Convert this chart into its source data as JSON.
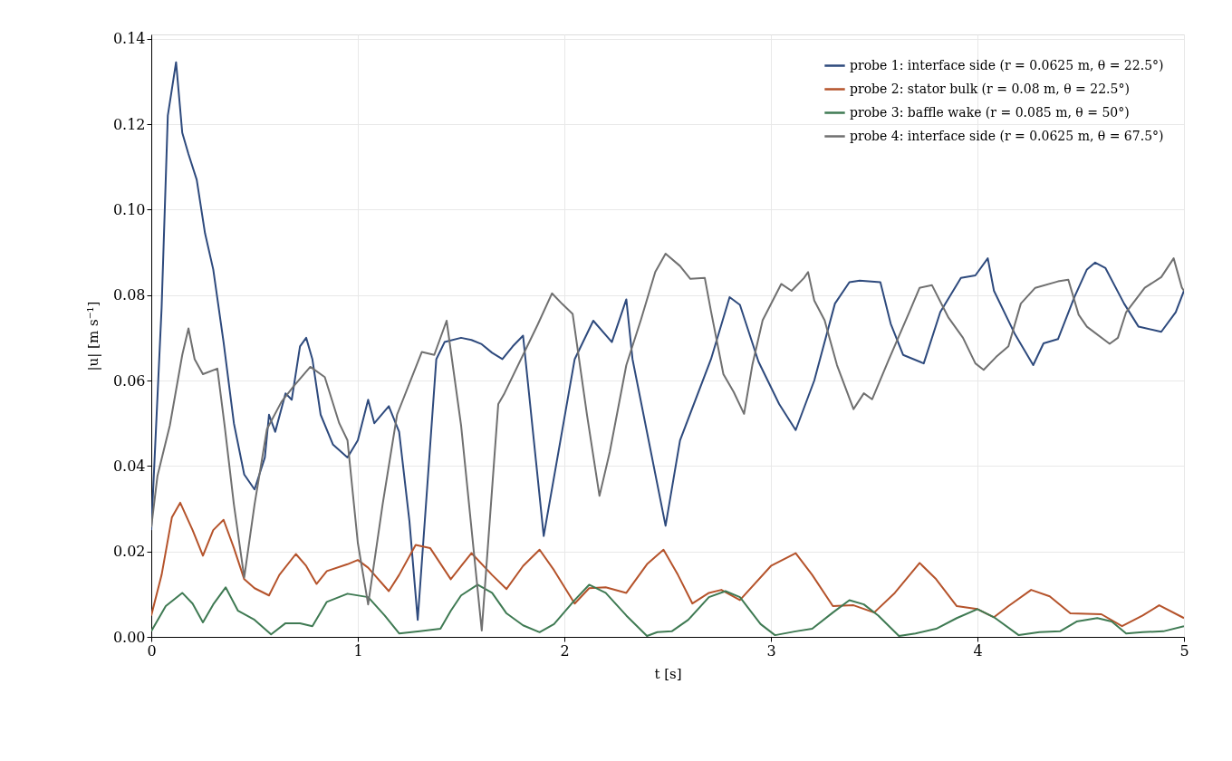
{
  "chart_data": {
    "type": "line",
    "xlabel": "t [s]",
    "ylabel": "|u| [m s⁻¹]",
    "xlim": [
      0,
      5
    ],
    "xticks": [
      0,
      1,
      2,
      3,
      4,
      5
    ],
    "ylim": [
      0,
      0.141
    ],
    "yticks": [
      {
        "value": 0,
        "label": "0.00"
      },
      {
        "value": 0.02,
        "label": "0.02"
      },
      {
        "value": 0.04,
        "label": "0.04"
      },
      {
        "value": 0.06,
        "label": "0.06"
      },
      {
        "value": 0.08,
        "label": "0.08"
      },
      {
        "value": 0.1,
        "label": "0.10"
      },
      {
        "value": 0.12,
        "label": "0.12"
      },
      {
        "value": 0.14,
        "label": "0.14"
      }
    ],
    "grid": true,
    "legend": "top right",
    "marker": "none",
    "line_style": "solid",
    "series": [
      {
        "name": "probe 1: interface side (r = 0.0625 m, θ = 22.5°)",
        "color": "#2e4a7d",
        "x": [
          0,
          0.05,
          0.08,
          0.12,
          0.15,
          0.18,
          0.22,
          0.26,
          0.3,
          0.35,
          0.4,
          0.45,
          0.5,
          0.55,
          0.57,
          0.6,
          0.65,
          0.68,
          0.72,
          0.75,
          0.78,
          0.82,
          0.88,
          0.95,
          1.0,
          1.05,
          1.08,
          1.15,
          1.2,
          1.25,
          1.29,
          1.33,
          1.38,
          1.42,
          1.5,
          1.55,
          1.6,
          1.65,
          1.7,
          1.75,
          1.8,
          1.9,
          2.05,
          2.14,
          2.23,
          2.3,
          2.33,
          2.49,
          2.56,
          2.71,
          2.8,
          2.85,
          2.94,
          3.04,
          3.12,
          3.21,
          3.31,
          3.38,
          3.43,
          3.53,
          3.58,
          3.64,
          3.74,
          3.82,
          3.92,
          3.99,
          4.05,
          4.08,
          4.18,
          4.27,
          4.32,
          4.39,
          4.47,
          4.53,
          4.57,
          4.62,
          4.71,
          4.78,
          4.89,
          4.96,
          5.0
        ],
        "values": [
          0.025,
          0.077,
          0.122,
          0.1345,
          0.118,
          0.113,
          0.107,
          0.0945,
          0.086,
          0.069,
          0.05,
          0.038,
          0.0345,
          0.042,
          0.052,
          0.048,
          0.057,
          0.0555,
          0.068,
          0.07,
          0.065,
          0.052,
          0.045,
          0.042,
          0.046,
          0.0555,
          0.05,
          0.054,
          0.048,
          0.027,
          0.004,
          0.031,
          0.065,
          0.069,
          0.07,
          0.0695,
          0.0685,
          0.0665,
          0.065,
          0.068,
          0.0705,
          0.0236,
          0.065,
          0.074,
          0.069,
          0.079,
          0.065,
          0.026,
          0.046,
          0.065,
          0.0795,
          0.0777,
          0.0644,
          0.0545,
          0.0484,
          0.06,
          0.078,
          0.083,
          0.0834,
          0.083,
          0.0733,
          0.066,
          0.064,
          0.076,
          0.084,
          0.0846,
          0.0886,
          0.081,
          0.071,
          0.0636,
          0.0687,
          0.0697,
          0.0796,
          0.086,
          0.0876,
          0.0863,
          0.078,
          0.0726,
          0.0714,
          0.076,
          0.081
        ]
      },
      {
        "name": "probe 2: stator bulk (r = 0.08 m, θ = 22.5°)",
        "color": "#b5532b",
        "x": [
          0,
          0.05,
          0.1,
          0.14,
          0.2,
          0.25,
          0.3,
          0.35,
          0.4,
          0.45,
          0.5,
          0.57,
          0.62,
          0.7,
          0.75,
          0.8,
          0.85,
          0.95,
          1.0,
          1.05,
          1.15,
          1.2,
          1.28,
          1.35,
          1.45,
          1.55,
          1.65,
          1.72,
          1.8,
          1.88,
          1.95,
          2.05,
          2.12,
          2.2,
          2.3,
          2.4,
          2.48,
          2.55,
          2.62,
          2.7,
          2.76,
          2.85,
          3.0,
          3.12,
          3.2,
          3.3,
          3.4,
          3.5,
          3.6,
          3.72,
          3.8,
          3.9,
          4.0,
          4.08,
          4.15,
          4.26,
          4.35,
          4.45,
          4.6,
          4.7,
          4.8,
          4.88,
          5.0
        ],
        "values": [
          0.005,
          0.0145,
          0.028,
          0.0314,
          0.025,
          0.019,
          0.025,
          0.0274,
          0.0208,
          0.0135,
          0.0114,
          0.0097,
          0.0145,
          0.0194,
          0.0166,
          0.0124,
          0.0154,
          0.017,
          0.018,
          0.0162,
          0.0107,
          0.0145,
          0.0215,
          0.0208,
          0.0135,
          0.0196,
          0.0145,
          0.0112,
          0.0166,
          0.0204,
          0.0156,
          0.0078,
          0.0114,
          0.0116,
          0.0103,
          0.017,
          0.0204,
          0.0145,
          0.0078,
          0.0103,
          0.011,
          0.0086,
          0.0166,
          0.0196,
          0.0145,
          0.0072,
          0.0074,
          0.0057,
          0.0103,
          0.0173,
          0.0135,
          0.0072,
          0.0065,
          0.0046,
          0.0072,
          0.011,
          0.0095,
          0.0055,
          0.0053,
          0.0025,
          0.005,
          0.0074,
          0.0044
        ]
      },
      {
        "name": "probe 3: baffle wake (r = 0.085 m, θ = 50°)",
        "color": "#3f7a53",
        "x": [
          0,
          0.07,
          0.15,
          0.2,
          0.25,
          0.3,
          0.36,
          0.42,
          0.5,
          0.58,
          0.65,
          0.72,
          0.78,
          0.85,
          0.95,
          1.05,
          1.13,
          1.2,
          1.3,
          1.4,
          1.45,
          1.5,
          1.58,
          1.65,
          1.72,
          1.8,
          1.88,
          1.95,
          2.05,
          2.12,
          2.2,
          2.3,
          2.4,
          2.45,
          2.52,
          2.6,
          2.7,
          2.78,
          2.85,
          2.95,
          3.02,
          3.12,
          3.2,
          3.3,
          3.38,
          3.45,
          3.52,
          3.62,
          3.7,
          3.8,
          3.9,
          4.0,
          4.08,
          4.2,
          4.3,
          4.4,
          4.48,
          4.58,
          4.65,
          4.72,
          4.8,
          4.9,
          5.0
        ],
        "values": [
          0.0013,
          0.0072,
          0.0103,
          0.0078,
          0.0034,
          0.0076,
          0.0116,
          0.0061,
          0.004,
          0.0006,
          0.0032,
          0.0032,
          0.0025,
          0.0082,
          0.0101,
          0.0093,
          0.005,
          0.0008,
          0.0013,
          0.0019,
          0.0061,
          0.0097,
          0.0122,
          0.0103,
          0.0055,
          0.0027,
          0.0011,
          0.003,
          0.0086,
          0.0122,
          0.0103,
          0.005,
          0.0002,
          0.0011,
          0.0013,
          0.004,
          0.0093,
          0.0107,
          0.0093,
          0.003,
          0.0004,
          0.0013,
          0.0019,
          0.0057,
          0.0086,
          0.0076,
          0.005,
          0.0002,
          0.0008,
          0.0019,
          0.0044,
          0.0065,
          0.0046,
          0.0004,
          0.0011,
          0.0013,
          0.0036,
          0.0044,
          0.0036,
          0.0008,
          0.0011,
          0.0013,
          0.0025
        ]
      },
      {
        "name": "probe 4: interface side (r = 0.0625 m, θ = 67.5°)",
        "color": "#707070",
        "x": [
          0,
          0.03,
          0.09,
          0.15,
          0.18,
          0.21,
          0.25,
          0.32,
          0.355,
          0.4,
          0.45,
          0.5,
          0.56,
          0.63,
          0.69,
          0.77,
          0.84,
          0.91,
          0.95,
          1.0,
          1.05,
          1.12,
          1.19,
          1.31,
          1.37,
          1.43,
          1.5,
          1.6,
          1.68,
          1.71,
          1.87,
          1.94,
          1.99,
          2.04,
          2.11,
          2.17,
          2.22,
          2.3,
          2.37,
          2.44,
          2.49,
          2.56,
          2.61,
          2.68,
          2.71,
          2.77,
          2.82,
          2.87,
          2.91,
          2.96,
          3.05,
          3.1,
          3.16,
          3.18,
          3.21,
          3.26,
          3.32,
          3.4,
          3.45,
          3.49,
          3.57,
          3.67,
          3.72,
          3.78,
          3.86,
          3.93,
          3.99,
          4.03,
          4.09,
          4.15,
          4.21,
          4.28,
          4.39,
          4.44,
          4.49,
          4.53,
          4.64,
          4.68,
          4.72,
          4.81,
          4.89,
          4.95,
          4.99,
          5.0
        ],
        "values": [
          0.0257,
          0.0377,
          0.0495,
          0.066,
          0.0722,
          0.065,
          0.0615,
          0.0628,
          0.0495,
          0.031,
          0.0139,
          0.031,
          0.0486,
          0.055,
          0.0587,
          0.0632,
          0.0608,
          0.05,
          0.046,
          0.022,
          0.0076,
          0.031,
          0.052,
          0.0667,
          0.066,
          0.074,
          0.0495,
          0.0015,
          0.0545,
          0.057,
          0.073,
          0.0804,
          0.0779,
          0.0756,
          0.0518,
          0.033,
          0.0433,
          0.0636,
          0.0741,
          0.0854,
          0.0897,
          0.0868,
          0.0838,
          0.084,
          0.0762,
          0.0615,
          0.0573,
          0.0522,
          0.0636,
          0.0741,
          0.0826,
          0.081,
          0.084,
          0.0854,
          0.0787,
          0.0741,
          0.0636,
          0.0533,
          0.057,
          0.0556,
          0.0648,
          0.076,
          0.0817,
          0.0823,
          0.0747,
          0.07,
          0.064,
          0.0625,
          0.0655,
          0.068,
          0.078,
          0.0817,
          0.0832,
          0.0836,
          0.0754,
          0.0726,
          0.0686,
          0.07,
          0.076,
          0.0817,
          0.0842,
          0.0886,
          0.0817,
          0.081
        ]
      }
    ]
  }
}
